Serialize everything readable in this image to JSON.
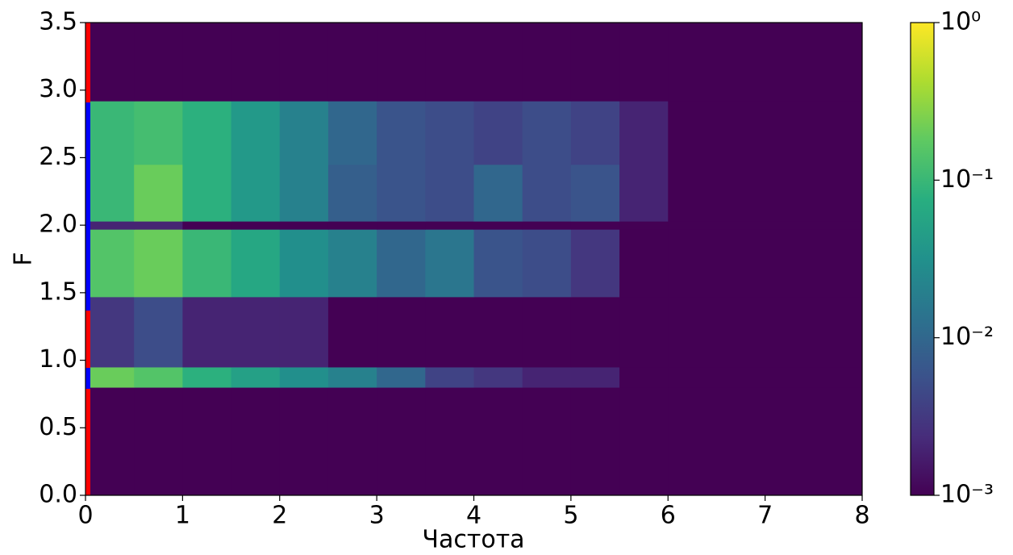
{
  "chart_data": {
    "type": "heatmap",
    "xlabel": "Частота",
    "ylabel": "F",
    "xbins": [
      0,
      0.5,
      1,
      1.5,
      2,
      2.5,
      3,
      3.5,
      4,
      4.5,
      5,
      5.5,
      6,
      7,
      8
    ],
    "ybins": [
      0,
      0.8,
      0.95,
      1.47,
      1.97,
      2.03,
      2.45,
      2.92,
      3.5
    ],
    "values": [
      [
        0.001,
        0.001,
        0.001,
        0.001,
        0.001,
        0.001,
        0.001,
        0.001,
        0.001,
        0.001,
        0.001,
        0.001,
        0.001,
        0.001
      ],
      [
        0.2,
        0.15,
        0.08,
        0.05,
        0.03,
        0.02,
        0.01,
        0.004,
        0.003,
        0.002,
        0.002,
        0.001,
        0.001,
        0.001
      ],
      [
        0.003,
        0.005,
        0.002,
        0.002,
        0.002,
        0.001,
        0.001,
        0.001,
        0.001,
        0.001,
        0.001,
        0.001,
        0.001,
        0.001
      ],
      [
        0.15,
        0.2,
        0.1,
        0.06,
        0.03,
        0.02,
        0.01,
        0.015,
        0.006,
        0.005,
        0.003,
        0.001,
        0.001,
        0.001
      ],
      [
        0.002,
        0.002,
        0.001,
        0.001,
        0.001,
        0.001,
        0.001,
        0.001,
        0.001,
        0.001,
        0.001,
        0.001,
        0.001,
        0.001
      ],
      [
        0.1,
        0.2,
        0.08,
        0.04,
        0.02,
        0.008,
        0.006,
        0.005,
        0.01,
        0.005,
        0.006,
        0.002,
        0.001,
        0.001
      ],
      [
        0.1,
        0.12,
        0.08,
        0.04,
        0.02,
        0.01,
        0.006,
        0.005,
        0.004,
        0.005,
        0.004,
        0.002,
        0.001,
        0.001
      ],
      [
        0.001,
        0.001,
        0.001,
        0.001,
        0.001,
        0.001,
        0.001,
        0.001,
        0.001,
        0.001,
        0.001,
        0.001,
        0.001,
        0.001
      ]
    ],
    "xlim": [
      0,
      8
    ],
    "xticks": [
      0,
      1,
      2,
      3,
      4,
      5,
      6,
      7,
      8
    ],
    "ylim": [
      0,
      3.5
    ],
    "yticks": [
      {
        "value": 0,
        "label": "0.0"
      },
      0.5,
      {
        "value": 1,
        "label": "1.0"
      },
      1.5,
      {
        "value": 2,
        "label": "2.0"
      },
      2.5,
      {
        "value": 3,
        "label": "3.0"
      },
      3.5
    ],
    "colormap": "viridis",
    "color_scale": "log",
    "clim": [
      0.001,
      1
    ],
    "cticks": [
      {
        "value": 0.001,
        "label": "10⁻³"
      },
      {
        "value": 0.01,
        "label": "10⁻²"
      },
      {
        "value": 0.1,
        "label": "10⁻¹"
      },
      {
        "value": 1,
        "label": "10⁰"
      }
    ]
  }
}
